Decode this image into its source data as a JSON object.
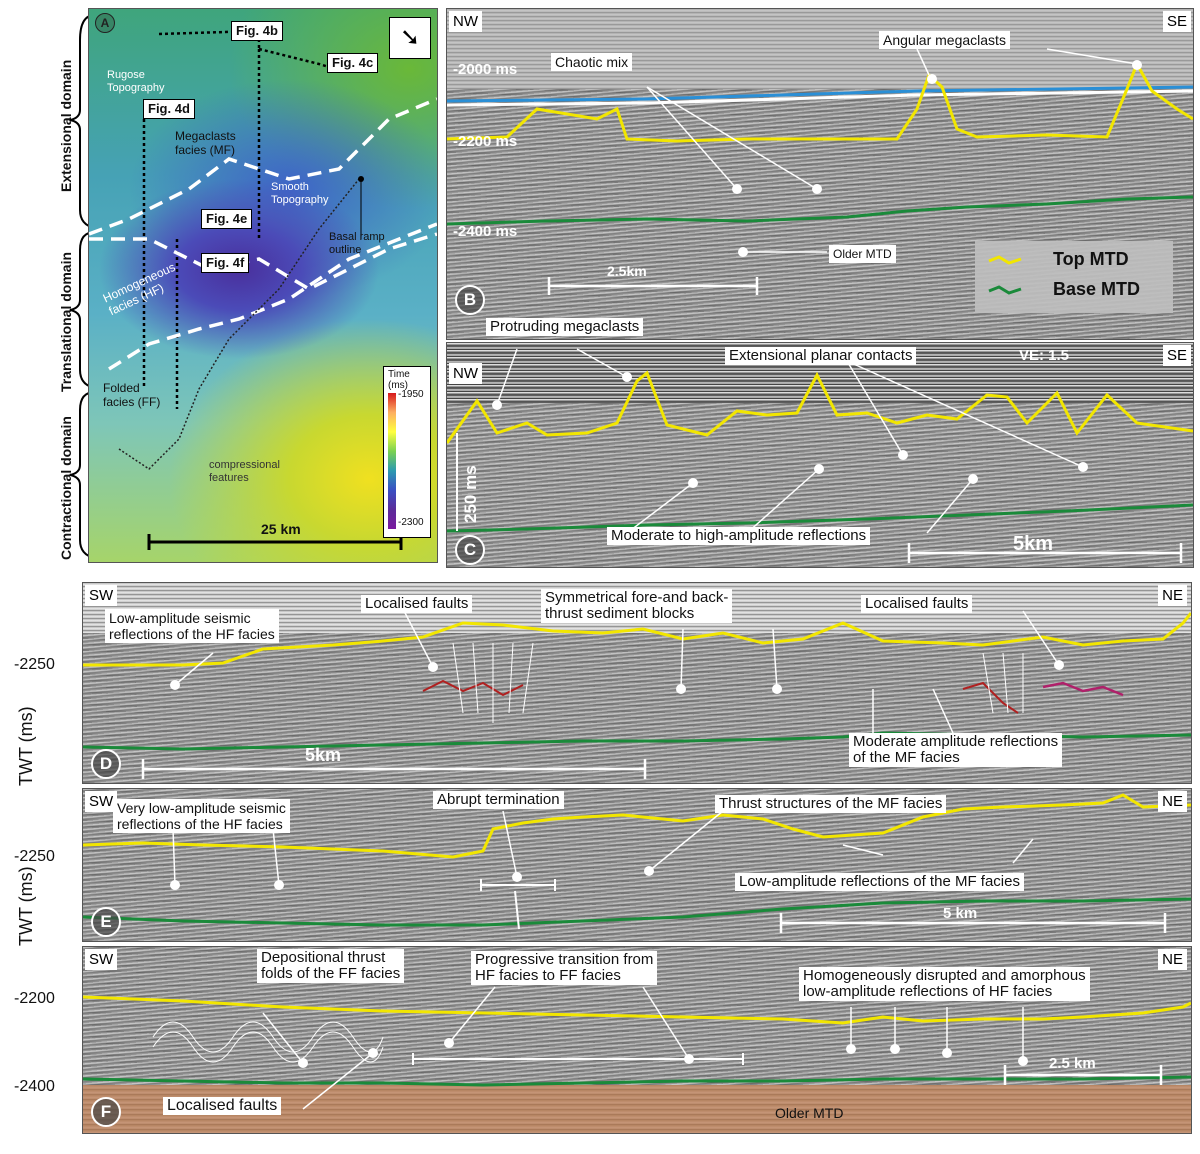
{
  "panelA": {
    "letter": "A",
    "figs": [
      "Fig. 4b",
      "Fig. 4c",
      "Fig. 4d",
      "Fig. 4e",
      "Fig. 4f"
    ],
    "rugose": "Rugose\nTopography",
    "megaclasts": "Megaclasts\nfacies (MF)",
    "smooth": "Smooth\nTopography",
    "basal": "Basal ramp\noutline",
    "homogeneous": "Homogeneous\nfacies (HF)",
    "folded": "Folded\nfacies (FF)",
    "compressional": "compressional\nfeatures",
    "scale": "25 km",
    "legend": {
      "title": "Time\n(ms)",
      "top": "-1950",
      "bottom": "-2300"
    },
    "domains": [
      "Extensional domain",
      "Translational domain",
      "Contractional domain"
    ]
  },
  "panelB": {
    "letter": "B",
    "left": "NW",
    "right": "SE",
    "ms": [
      "-2000 ms",
      "-2200 ms",
      "-2400 ms"
    ],
    "chaotic": "Chaotic mix",
    "angular": "Angular megaclasts",
    "older": "Older MTD",
    "scale": "2.5km",
    "legend_top": "Top MTD",
    "legend_base": "Base MTD"
  },
  "panelC": {
    "letter": "C",
    "left": "NW",
    "right": "SE",
    "ve": "VE: 1.5",
    "protruding": "Protruding megaclasts",
    "extensional": "Extensional planar contacts",
    "moderate": "Moderate to high-amplitude reflections",
    "scale": "5km",
    "ms": "250 ms"
  },
  "panelD": {
    "letter": "D",
    "left": "SW",
    "right": "NE",
    "low": "Low-amplitude seismic\nreflections of the HF facies",
    "faults1": "Localised faults",
    "sym": "Symmetrical fore-and back-\nthrust sediment blocks",
    "faults2": "Localised faults",
    "moderate": "Moderate amplitude reflections\nof the MF facies",
    "scale": "5km"
  },
  "panelE": {
    "letter": "E",
    "left": "SW",
    "right": "NE",
    "verylow": "Very low-amplitude seismic\nreflections of the HF facies",
    "abrupt": "Abrupt termination",
    "thrust": "Thrust structures of the MF facies",
    "lowmf": "Low-amplitude reflections of the MF facies",
    "scale": "5 km"
  },
  "panelF": {
    "letter": "F",
    "left": "SW",
    "right": "NE",
    "depo": "Depositional thrust\nfolds of the FF facies",
    "prog": "Progressive transition from\nHF facies to FF facies",
    "homog": "Homogeneously disrupted and amorphous\nlow-amplitude reflections of HF facies",
    "faults": "Localised faults",
    "older": "Older MTD",
    "scale": "2.5 km"
  },
  "axis": {
    "twt": "TWT (ms)",
    "ticks": [
      "-2250",
      "-2250",
      "-2200",
      "-2400"
    ]
  },
  "colors": {
    "top_mtd": "#f2e600",
    "base_mtd": "#1a8a3a",
    "blue_horizon": "#2a8fd6"
  }
}
